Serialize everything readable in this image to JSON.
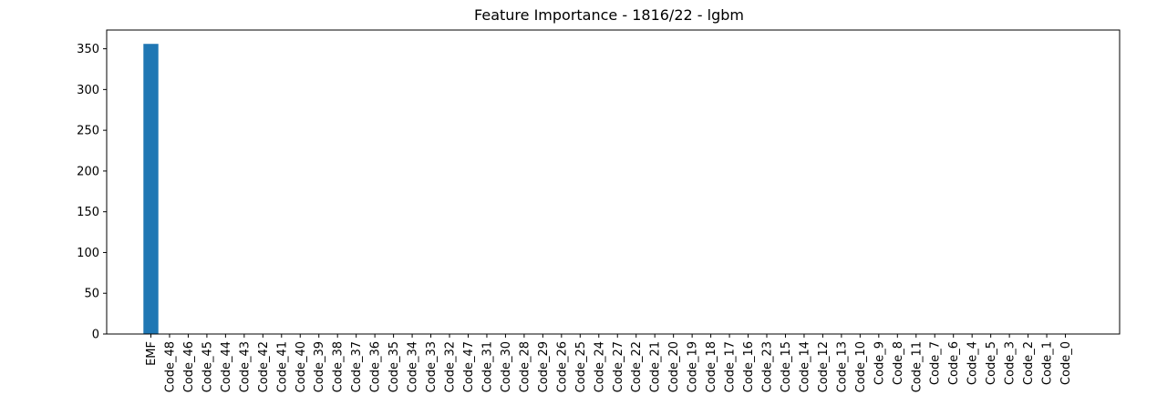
{
  "chart_data": {
    "type": "bar",
    "title": "Feature Importance - 1816/22 - lgbm",
    "xlabel": "",
    "ylabel": "",
    "categories": [
      "EMF",
      "Code_48",
      "Code_46",
      "Code_45",
      "Code_44",
      "Code_43",
      "Code_42",
      "Code_41",
      "Code_40",
      "Code_39",
      "Code_38",
      "Code_37",
      "Code_36",
      "Code_35",
      "Code_34",
      "Code_33",
      "Code_32",
      "Code_47",
      "Code_31",
      "Code_30",
      "Code_28",
      "Code_29",
      "Code_26",
      "Code_25",
      "Code_24",
      "Code_27",
      "Code_22",
      "Code_21",
      "Code_20",
      "Code_19",
      "Code_18",
      "Code_17",
      "Code_16",
      "Code_23",
      "Code_15",
      "Code_14",
      "Code_12",
      "Code_13",
      "Code_10",
      "Code_9",
      "Code_8",
      "Code_11",
      "Code_7",
      "Code_6",
      "Code_4",
      "Code_5",
      "Code_3",
      "Code_2",
      "Code_1",
      "Code_0"
    ],
    "values": [
      356,
      0,
      0,
      0,
      0,
      0,
      0,
      0,
      0,
      0,
      0,
      0,
      0,
      0,
      0,
      0,
      0,
      0,
      0,
      0,
      0,
      0,
      0,
      0,
      0,
      0,
      0,
      0,
      0,
      0,
      0,
      0,
      0,
      0,
      0,
      0,
      0,
      0,
      0,
      0,
      0,
      0,
      0,
      0,
      0,
      0,
      0,
      0,
      0,
      0
    ],
    "ylim": [
      0,
      373
    ],
    "yticks": [
      0,
      50,
      100,
      150,
      200,
      250,
      300,
      350
    ],
    "grid": false,
    "bar_color": "#1f77b4"
  }
}
